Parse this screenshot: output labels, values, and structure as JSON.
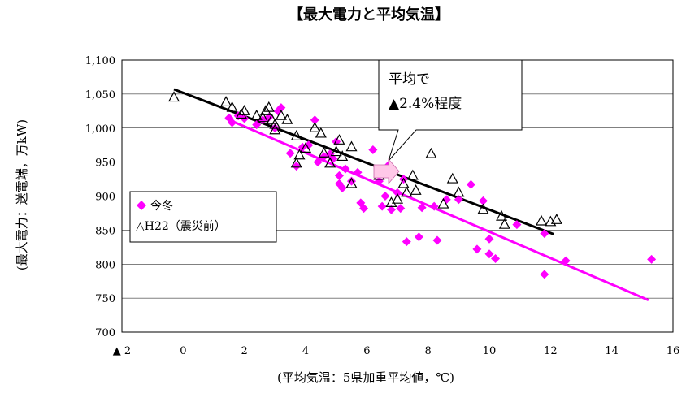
{
  "chart_data": {
    "type": "scatter",
    "title": "【最大電力と平均気温】",
    "xlabel": "(平均気温：5県加重平均値，℃)",
    "ylabel": "(最大電力：送電端，万kW)",
    "xlim": [
      -2,
      16
    ],
    "ylim": [
      700,
      1100
    ],
    "x_ticks": [
      -2,
      0,
      2,
      4,
      6,
      8,
      10,
      12,
      14,
      16
    ],
    "x_tick_labels": [
      "▲ 2",
      "0",
      "2",
      "4",
      "6",
      "8",
      "10",
      "12",
      "14",
      "16"
    ],
    "y_ticks": [
      700,
      750,
      800,
      850,
      900,
      950,
      1000,
      1050,
      1100
    ],
    "y_tick_labels": [
      "700",
      "750",
      "800",
      "850",
      "900",
      "950",
      "1,000",
      "1,050",
      "1,100"
    ],
    "grid": "horizontal",
    "legend_position": "left",
    "annotation": {
      "line1": "平均で",
      "line2": "▲2.4%程度"
    },
    "colors": {
      "current": "#ff00ff",
      "previous": "#000000"
    },
    "series": [
      {
        "name": "今冬",
        "marker": "diamond",
        "color": "#ff00ff",
        "trend": [
          [
            1.4,
            1014
          ],
          [
            15.2,
            747
          ]
        ],
        "points": [
          [
            1.5,
            1015
          ],
          [
            1.6,
            1008
          ],
          [
            1.8,
            1018
          ],
          [
            2.0,
            1014
          ],
          [
            2.4,
            1005
          ],
          [
            2.6,
            1012
          ],
          [
            2.8,
            1016
          ],
          [
            3.0,
            1000
          ],
          [
            3.2,
            1030
          ],
          [
            3.1,
            1025
          ],
          [
            3.5,
            963
          ],
          [
            3.7,
            944
          ],
          [
            3.9,
            972
          ],
          [
            4.1,
            975
          ],
          [
            4.3,
            1012
          ],
          [
            4.4,
            950
          ],
          [
            4.6,
            958
          ],
          [
            4.8,
            962
          ],
          [
            4.9,
            955
          ],
          [
            5.0,
            980
          ],
          [
            5.1,
            930
          ],
          [
            5.1,
            918
          ],
          [
            5.2,
            912
          ],
          [
            5.3,
            940
          ],
          [
            5.5,
            922
          ],
          [
            5.7,
            935
          ],
          [
            5.8,
            890
          ],
          [
            5.9,
            882
          ],
          [
            6.2,
            968
          ],
          [
            6.4,
            922
          ],
          [
            6.5,
            885
          ],
          [
            6.6,
            900
          ],
          [
            6.7,
            945
          ],
          [
            6.8,
            880
          ],
          [
            7.0,
            905
          ],
          [
            7.1,
            882
          ],
          [
            7.2,
            925
          ],
          [
            7.3,
            833
          ],
          [
            7.7,
            840
          ],
          [
            7.8,
            883
          ],
          [
            8.2,
            885
          ],
          [
            8.3,
            835
          ],
          [
            8.6,
            895
          ],
          [
            9.0,
            895
          ],
          [
            9.4,
            917
          ],
          [
            9.6,
            822
          ],
          [
            9.8,
            893
          ],
          [
            10.0,
            837
          ],
          [
            10.0,
            815
          ],
          [
            10.2,
            808
          ],
          [
            10.9,
            858
          ],
          [
            11.8,
            785
          ],
          [
            11.8,
            845
          ],
          [
            12.5,
            805
          ],
          [
            15.3,
            807
          ]
        ]
      },
      {
        "name": "△H22（震災前）",
        "marker": "triangle",
        "color": "#000000",
        "trend": [
          [
            -0.3,
            1057
          ],
          [
            12.1,
            844
          ]
        ],
        "points": [
          [
            -0.3,
            1045
          ],
          [
            1.4,
            1038
          ],
          [
            1.6,
            1030
          ],
          [
            1.9,
            1020
          ],
          [
            2.0,
            1025
          ],
          [
            2.4,
            1018
          ],
          [
            2.6,
            1015
          ],
          [
            2.7,
            1025
          ],
          [
            2.8,
            1030
          ],
          [
            2.9,
            1012
          ],
          [
            3.0,
            997
          ],
          [
            3.0,
            1005
          ],
          [
            3.2,
            1018
          ],
          [
            3.4,
            1012
          ],
          [
            3.7,
            988
          ],
          [
            3.7,
            948
          ],
          [
            3.8,
            960
          ],
          [
            4.0,
            970
          ],
          [
            4.3,
            1000
          ],
          [
            4.5,
            992
          ],
          [
            4.6,
            963
          ],
          [
            4.8,
            948
          ],
          [
            5.0,
            965
          ],
          [
            5.1,
            982
          ],
          [
            5.2,
            958
          ],
          [
            5.5,
            918
          ],
          [
            5.5,
            972
          ],
          [
            6.4,
            930
          ],
          [
            6.8,
            890
          ],
          [
            7.0,
            895
          ],
          [
            7.2,
            918
          ],
          [
            7.3,
            905
          ],
          [
            7.5,
            930
          ],
          [
            7.6,
            908
          ],
          [
            8.1,
            962
          ],
          [
            8.5,
            888
          ],
          [
            8.8,
            925
          ],
          [
            9.0,
            905
          ],
          [
            9.8,
            880
          ],
          [
            10.4,
            870
          ],
          [
            10.5,
            858
          ],
          [
            11.7,
            863
          ],
          [
            12.0,
            862
          ],
          [
            12.2,
            865
          ]
        ]
      }
    ]
  }
}
